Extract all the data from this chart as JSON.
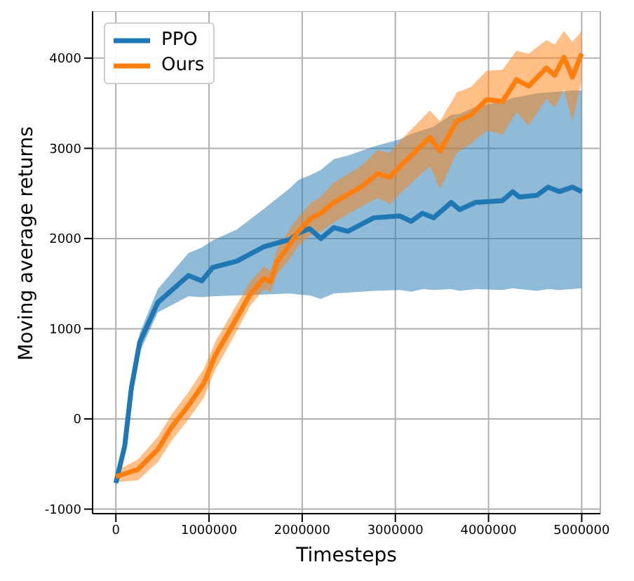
{
  "chart_data": {
    "type": "line",
    "xlabel": "Timesteps",
    "ylabel": "Moving average returns",
    "xlim": [
      -250000,
      5200000
    ],
    "ylim": [
      -1050,
      4520
    ],
    "xticks": [
      0,
      1000000,
      2000000,
      3000000,
      4000000,
      5000000
    ],
    "yticks": [
      -1000,
      0,
      1000,
      2000,
      3000,
      4000
    ],
    "grid": true,
    "legend": "top left",
    "line_style": "solid",
    "marker": "none",
    "series": [
      {
        "name": "PPO",
        "color": "#1f77b4",
        "x": [
          0,
          95000,
          166000,
          256000,
          450000,
          780000,
          923000,
          1040000,
          1300000,
          1590000,
          1870000,
          1960000,
          2080000,
          2200000,
          2340000,
          2490000,
          2770000,
          3050000,
          3170000,
          3290000,
          3410000,
          3600000,
          3690000,
          3860000,
          4150000,
          4260000,
          4330000,
          4520000,
          4640000,
          4760000,
          4900000,
          5000000
        ],
        "values": [
          -710,
          -300,
          340,
          850,
          1290,
          1590,
          1530,
          1680,
          1750,
          1910,
          1990,
          2060,
          2110,
          2000,
          2120,
          2080,
          2230,
          2250,
          2190,
          2280,
          2230,
          2400,
          2320,
          2400,
          2420,
          2520,
          2460,
          2480,
          2570,
          2520,
          2570,
          2520
        ],
        "lower": [
          -760,
          -360,
          260,
          740,
          1180,
          1360,
          1350,
          1360,
          1370,
          1380,
          1390,
          1380,
          1370,
          1330,
          1390,
          1400,
          1420,
          1430,
          1410,
          1440,
          1430,
          1440,
          1420,
          1440,
          1430,
          1450,
          1440,
          1420,
          1440,
          1430,
          1440,
          1450
        ],
        "upper": [
          -670,
          -230,
          420,
          950,
          1440,
          1840,
          1900,
          1980,
          2100,
          2330,
          2560,
          2650,
          2700,
          2760,
          2880,
          2920,
          3020,
          3100,
          3160,
          3200,
          3240,
          3370,
          3380,
          3460,
          3520,
          3560,
          3570,
          3610,
          3620,
          3630,
          3640,
          3640
        ]
      },
      {
        "name": "Ours",
        "color": "#ff7f0e",
        "x": [
          0,
          237000,
          450000,
          592000,
          781000,
          947000,
          1065000,
          1254000,
          1440000,
          1590000,
          1660000,
          1730000,
          1850000,
          1960000,
          2100000,
          2200000,
          2340000,
          2630000,
          2810000,
          2940000,
          3050000,
          3370000,
          3480000,
          3660000,
          3810000,
          3980000,
          4150000,
          4300000,
          4430000,
          4620000,
          4710000,
          4810000,
          4900000,
          5000000
        ],
        "values": [
          -640,
          -560,
          -340,
          -100,
          150,
          400,
          700,
          1040,
          1380,
          1560,
          1520,
          1740,
          1910,
          2080,
          2230,
          2280,
          2400,
          2570,
          2720,
          2680,
          2800,
          3120,
          2970,
          3300,
          3370,
          3540,
          3520,
          3760,
          3690,
          3890,
          3810,
          4010,
          3790,
          4050
        ],
        "lower": [
          -700,
          -680,
          -480,
          -250,
          0,
          240,
          540,
          890,
          1250,
          1440,
          1400,
          1600,
          1750,
          1920,
          2050,
          2080,
          2180,
          2350,
          2450,
          2380,
          2500,
          2800,
          2550,
          2950,
          3050,
          3200,
          3150,
          3400,
          3250,
          3550,
          3450,
          3650,
          3300,
          3750
        ],
        "upper": [
          -580,
          -450,
          -200,
          40,
          300,
          560,
          850,
          1190,
          1520,
          1690,
          1640,
          1880,
          2080,
          2240,
          2400,
          2460,
          2620,
          2800,
          2980,
          2950,
          3080,
          3420,
          3300,
          3620,
          3680,
          3860,
          3870,
          4080,
          4050,
          4200,
          4150,
          4300,
          4180,
          4300
        ]
      }
    ]
  }
}
